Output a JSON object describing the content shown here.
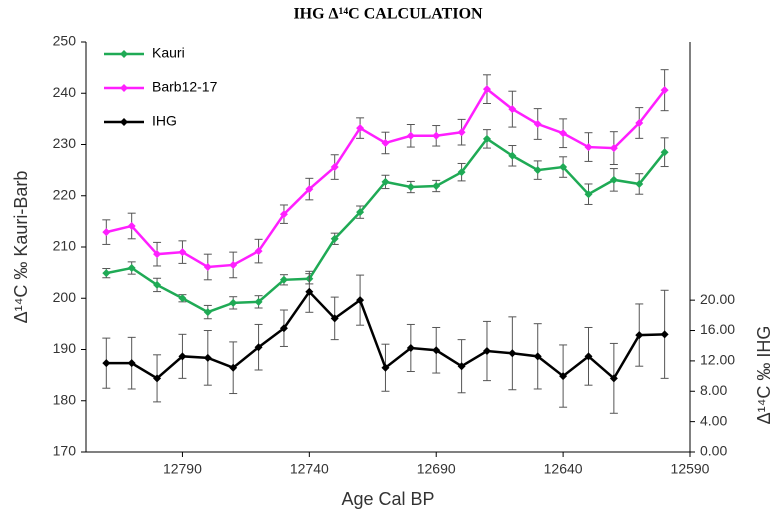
{
  "chart_data": {
    "type": "line",
    "title": "IHG Δ¹⁴C CALCULATION",
    "x_label": "Age Cal BP",
    "y_label": "Δ¹⁴C ‰ Kauri-Barb",
    "y2_label": "Δ¹⁴C ‰ IHG",
    "x": [
      12820,
      12810,
      12800,
      12790,
      12780,
      12770,
      12760,
      12750,
      12740,
      12730,
      12720,
      12710,
      12700,
      12690,
      12680,
      12670,
      12660,
      12650,
      12640,
      12630,
      12620,
      12610,
      12600
    ],
    "xlim": [
      12828,
      12590
    ],
    "xticks": [
      12790,
      12740,
      12690,
      12640,
      12590
    ],
    "ylim": [
      170,
      250
    ],
    "yticks": [
      170,
      180,
      190,
      200,
      210,
      220,
      230,
      240,
      250
    ],
    "y2lim": [
      0,
      54
    ],
    "y2ticks": [
      {
        "value": 0,
        "label": "0.00"
      },
      {
        "value": 4,
        "label": "4.00"
      },
      {
        "value": 8,
        "label": "8.00"
      },
      {
        "value": 12,
        "label": "12.00"
      },
      {
        "value": 16,
        "label": "16.00"
      },
      {
        "value": 20,
        "label": "20.00"
      }
    ],
    "legend": "top-left",
    "series": [
      {
        "name": "Kauri",
        "color": "#1faa55",
        "values": [
          204.9,
          205.9,
          202.6,
          200.0,
          197.3,
          199.1,
          199.3,
          203.6,
          203.8,
          211.6,
          216.8,
          222.7,
          221.7,
          221.9,
          224.6,
          231.1,
          227.8,
          225.0,
          225.6,
          220.3,
          223.1,
          222.3,
          228.5
        ],
        "errors": [
          0.9,
          1.2,
          1.3,
          0.7,
          1.3,
          1.2,
          1.2,
          1.0,
          1.0,
          1.1,
          1.2,
          1.3,
          1.1,
          1.1,
          1.7,
          1.8,
          2.0,
          1.8,
          2.0,
          2.0,
          2.2,
          2.0,
          2.8
        ]
      },
      {
        "name": "Barb12-17",
        "color": "#ff1fff",
        "values": [
          212.9,
          214.1,
          208.6,
          209.0,
          206.1,
          206.5,
          209.2,
          216.4,
          221.3,
          225.6,
          233.2,
          230.3,
          231.7,
          231.7,
          232.4,
          240.8,
          236.9,
          234.0,
          232.2,
          229.5,
          229.3,
          234.2,
          240.6
        ],
        "errors": [
          2.4,
          2.5,
          2.3,
          2.2,
          2.5,
          2.5,
          2.3,
          1.8,
          2.1,
          2.4,
          2.0,
          2.1,
          2.2,
          2.0,
          2.5,
          2.8,
          3.5,
          3.0,
          2.8,
          2.8,
          3.2,
          3.0,
          4.0
        ]
      },
      {
        "name": "IHG",
        "color": "#000000",
        "axis": "y2",
        "values": [
          11.7,
          11.7,
          9.7,
          12.6,
          12.4,
          11.1,
          13.8,
          16.3,
          21.1,
          17.6,
          20.0,
          11.1,
          13.7,
          13.4,
          11.3,
          13.3,
          13.0,
          12.6,
          10.0,
          12.6,
          9.7,
          15.4,
          15.5
        ],
        "errors": [
          3.3,
          3.4,
          3.1,
          2.9,
          3.6,
          3.4,
          3.0,
          2.4,
          2.7,
          2.8,
          3.3,
          3.1,
          3.1,
          3.0,
          3.5,
          3.9,
          4.8,
          4.3,
          4.1,
          3.8,
          4.6,
          4.1,
          5.8
        ]
      }
    ]
  }
}
